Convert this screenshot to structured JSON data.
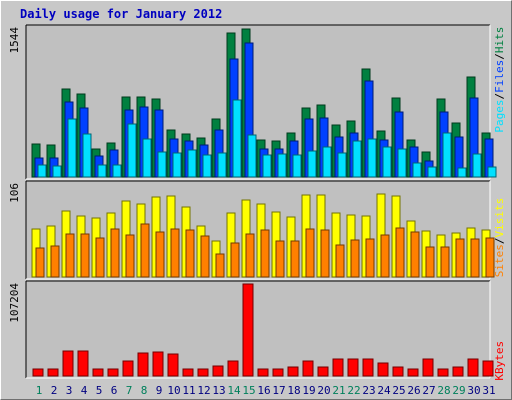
{
  "title": "Daily usage for January 2012",
  "colors": {
    "hits": "#008040",
    "files": "#0040ff",
    "pages": "#00e0ff",
    "visits": "#ffff00",
    "sites": "#ff8000",
    "kbytes": "#ff0000",
    "weekend_day": "#00805c",
    "weekday": "#000080"
  },
  "chart_data": [
    {
      "type": "bar",
      "categories": [
        "1",
        "2",
        "3",
        "4",
        "5",
        "6",
        "7",
        "8",
        "9",
        "10",
        "11",
        "12",
        "13",
        "14",
        "15",
        "16",
        "17",
        "18",
        "19",
        "20",
        "21",
        "22",
        "23",
        "24",
        "25",
        "26",
        "27",
        "28",
        "29",
        "30",
        "31"
      ],
      "weekend_days": [
        "1",
        "7",
        "8",
        "14",
        "15",
        "21",
        "22",
        "28",
        "29"
      ],
      "ymax_label": "1544",
      "ylim": [
        0,
        1544
      ],
      "series": [
        {
          "name": "Hits",
          "values": [
            340,
            330,
            920,
            870,
            290,
            350,
            830,
            830,
            810,
            490,
            450,
            410,
            610,
            1500,
            1544,
            390,
            380,
            460,
            720,
            750,
            540,
            580,
            1130,
            480,
            820,
            390,
            260,
            810,
            560,
            1040,
            460
          ]
        },
        {
          "name": "Files",
          "values": [
            200,
            200,
            780,
            720,
            220,
            280,
            700,
            730,
            700,
            400,
            380,
            330,
            490,
            1230,
            1400,
            290,
            290,
            380,
            600,
            620,
            420,
            460,
            1000,
            390,
            680,
            310,
            170,
            680,
            420,
            820,
            400
          ]
        },
        {
          "name": "Pages",
          "values": [
            120,
            110,
            610,
            450,
            130,
            130,
            550,
            400,
            260,
            250,
            280,
            230,
            250,
            800,
            440,
            230,
            240,
            230,
            270,
            310,
            250,
            380,
            400,
            310,
            290,
            150,
            100,
            460,
            90,
            240,
            100
          ]
        }
      ],
      "legend": [
        "Pages",
        "Files",
        "Hits"
      ]
    },
    {
      "type": "bar",
      "categories": [
        "1",
        "2",
        "3",
        "4",
        "5",
        "6",
        "7",
        "8",
        "9",
        "10",
        "11",
        "12",
        "13",
        "14",
        "15",
        "16",
        "17",
        "18",
        "19",
        "20",
        "21",
        "22",
        "23",
        "24",
        "25",
        "26",
        "27",
        "28",
        "29",
        "30",
        "31"
      ],
      "ymax_label": "106",
      "ylim": [
        0,
        106
      ],
      "series": [
        {
          "name": "Visits",
          "values": [
            55,
            59,
            76,
            70,
            68,
            74,
            88,
            84,
            92,
            93,
            81,
            59,
            41,
            74,
            89,
            84,
            75,
            69,
            94,
            95,
            74,
            72,
            70,
            96,
            93,
            64,
            53,
            48,
            51,
            57,
            54
          ]
        },
        {
          "name": "Sites",
          "values": [
            33,
            36,
            49,
            50,
            45,
            55,
            48,
            61,
            52,
            55,
            54,
            47,
            26,
            39,
            50,
            54,
            41,
            41,
            55,
            54,
            37,
            43,
            44,
            48,
            56,
            52,
            35,
            34,
            44,
            44,
            45
          ]
        }
      ],
      "legend": [
        "Sites",
        "Visits"
      ]
    },
    {
      "type": "bar",
      "categories": [
        "1",
        "2",
        "3",
        "4",
        "5",
        "6",
        "7",
        "8",
        "9",
        "10",
        "11",
        "12",
        "13",
        "14",
        "15",
        "16",
        "17",
        "18",
        "19",
        "20",
        "21",
        "22",
        "23",
        "24",
        "25",
        "26",
        "27",
        "28",
        "29",
        "30",
        "31"
      ],
      "ymax_label": "107204",
      "ylim": [
        0,
        107204
      ],
      "series": [
        {
          "name": "KBytes",
          "values": [
            8200,
            8200,
            29000,
            29500,
            8200,
            8200,
            17000,
            27000,
            28500,
            26000,
            8200,
            8000,
            12000,
            17000,
            107204,
            8200,
            8500,
            10000,
            18000,
            10000,
            20000,
            20000,
            20000,
            15000,
            10000,
            8200,
            20000,
            8200,
            11000,
            20000,
            17000
          ]
        }
      ],
      "legend": [
        "KBytes"
      ]
    }
  ]
}
